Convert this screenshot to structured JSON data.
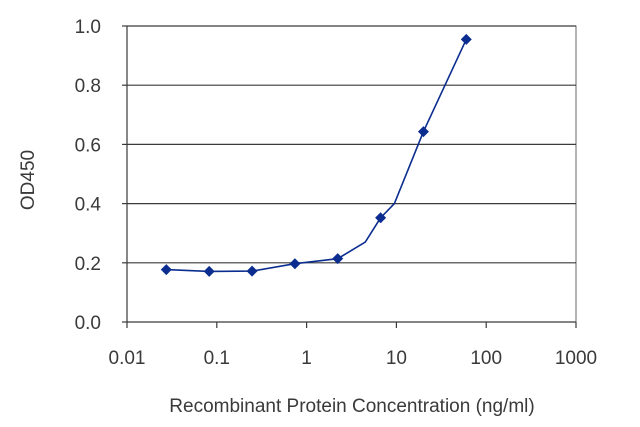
{
  "chart_data": {
    "type": "line",
    "title": "",
    "xlabel": "Recombinant Protein Concentration (ng/ml)",
    "ylabel": "OD450",
    "x_scale": "log",
    "xlim": [
      0.01,
      1000
    ],
    "ylim": [
      0.0,
      1.0
    ],
    "x_ticks": [
      "0.01",
      "0.1",
      "1",
      "10",
      "100",
      "1000"
    ],
    "y_ticks": [
      "0.0",
      "0.2",
      "0.4",
      "0.6",
      "0.8",
      "1.0"
    ],
    "grid": "horizontal",
    "series": [
      {
        "color": "#0b2d8f",
        "marker": "diamond",
        "points": [
          {
            "x": 0.0274,
            "y": 0.177
          },
          {
            "x": 0.0823,
            "y": 0.171
          },
          {
            "x": 0.247,
            "y": 0.172
          },
          {
            "x": 0.741,
            "y": 0.197
          },
          {
            "x": 2.22,
            "y": 0.214
          },
          {
            "x": 6.67,
            "y": 0.352
          },
          {
            "x": 20,
            "y": 0.643
          },
          {
            "x": 60,
            "y": 0.955
          }
        ],
        "fit_curve": [
          {
            "x": 0.0274,
            "y": 0.177
          },
          {
            "x": 0.0823,
            "y": 0.171
          },
          {
            "x": 0.247,
            "y": 0.172
          },
          {
            "x": 0.741,
            "y": 0.197
          },
          {
            "x": 2.22,
            "y": 0.214
          },
          {
            "x": 4.5,
            "y": 0.27
          },
          {
            "x": 6.67,
            "y": 0.352
          },
          {
            "x": 9.5,
            "y": 0.4
          },
          {
            "x": 20,
            "y": 0.643
          },
          {
            "x": 60,
            "y": 0.955
          }
        ]
      }
    ]
  }
}
